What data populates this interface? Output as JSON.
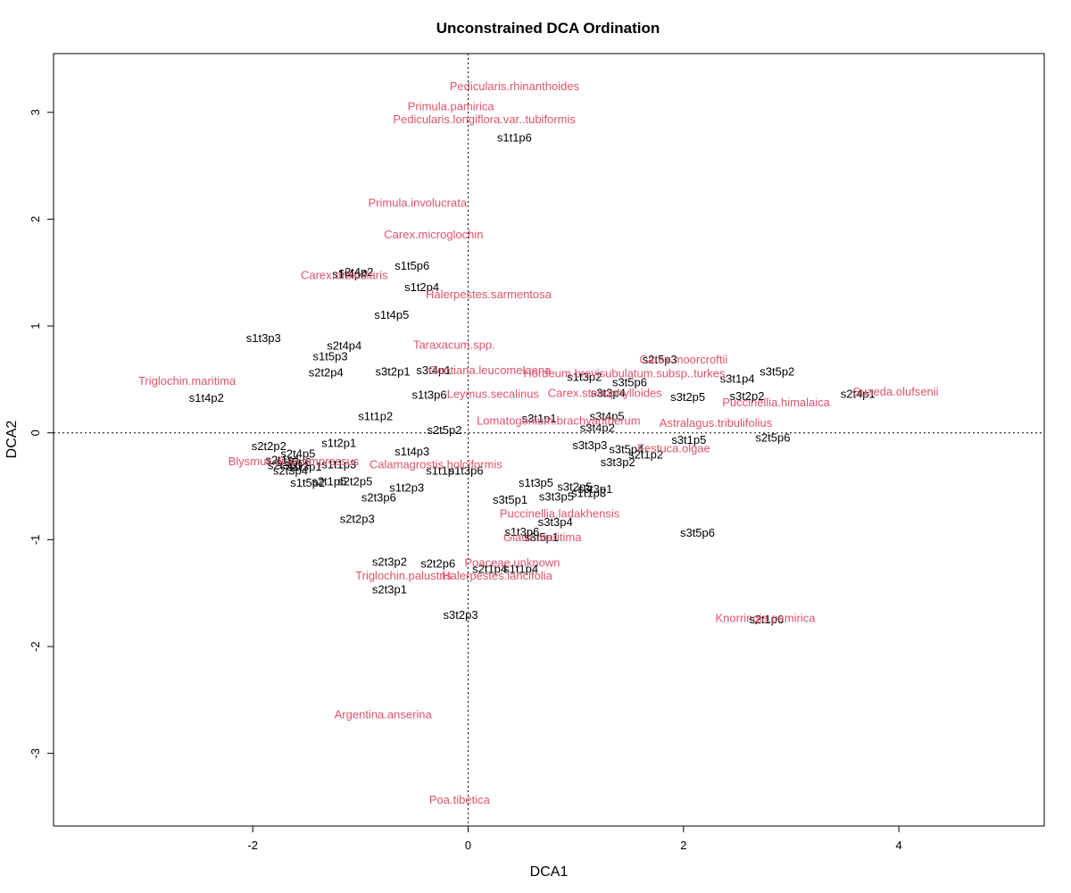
{
  "chart_data": {
    "type": "scatter",
    "title": "Unconstrained DCA Ordination",
    "xlabel": "DCA1",
    "ylabel": "DCA2",
    "xlim": [
      -3.85,
      5.35
    ],
    "ylim": [
      -3.68,
      3.55
    ],
    "xticks": [
      -2,
      0,
      2,
      4
    ],
    "yticks": [
      -3,
      -2,
      -1,
      0,
      1,
      2,
      3
    ],
    "reference_lines": {
      "x": 0,
      "y": 0,
      "style": "dotted"
    },
    "colors": {
      "sites": "#000000",
      "species": "#DF536B"
    },
    "sites": [
      {
        "label": "s1t1p6",
        "x": 0.43,
        "y": 2.77
      },
      {
        "label": "s1t5p6",
        "x": -0.52,
        "y": 1.57
      },
      {
        "label": "s2t4p2",
        "x": -1.04,
        "y": 1.51
      },
      {
        "label": "s1t4p4",
        "x": -1.1,
        "y": 1.49
      },
      {
        "label": "s1t2p4",
        "x": -0.43,
        "y": 1.37
      },
      {
        "label": "s1t4p5",
        "x": -0.71,
        "y": 1.11
      },
      {
        "label": "s1t3p3",
        "x": -1.9,
        "y": 0.89
      },
      {
        "label": "s2t4p4",
        "x": -1.15,
        "y": 0.82
      },
      {
        "label": "s1t5p3",
        "x": -1.28,
        "y": 0.72
      },
      {
        "label": "s2t2p4",
        "x": -1.32,
        "y": 0.57
      },
      {
        "label": "s3t2p1",
        "x": -0.7,
        "y": 0.58
      },
      {
        "label": "s3t4p1",
        "x": -0.32,
        "y": 0.59
      },
      {
        "label": "s1t4p2",
        "x": -2.43,
        "y": 0.33
      },
      {
        "label": "s1t3p6",
        "x": -0.36,
        "y": 0.36
      },
      {
        "label": "s1t1p2",
        "x": -0.86,
        "y": 0.16
      },
      {
        "label": "s2t5p2",
        "x": -0.22,
        "y": 0.03
      },
      {
        "label": "s3t1p1",
        "x": 0.66,
        "y": 0.14
      },
      {
        "label": "s3t4p2",
        "x": 1.2,
        "y": 0.05
      },
      {
        "label": "s3t4p5",
        "x": 1.29,
        "y": 0.16
      },
      {
        "label": "s1t3p2",
        "x": 1.08,
        "y": 0.53
      },
      {
        "label": "s2t5p3",
        "x": 1.78,
        "y": 0.69
      },
      {
        "label": "s3t5p6",
        "x": 1.5,
        "y": 0.48
      },
      {
        "label": "s3t1p4",
        "x": 2.5,
        "y": 0.51
      },
      {
        "label": "s3t5p2",
        "x": 2.87,
        "y": 0.58
      },
      {
        "label": "s3t2p2",
        "x": 2.59,
        "y": 0.35
      },
      {
        "label": "s2t4p1",
        "x": 3.62,
        "y": 0.37
      },
      {
        "label": "s3t3p4",
        "x": 1.3,
        "y": 0.38
      },
      {
        "label": "s3t2p5",
        "x": 2.04,
        "y": 0.34
      },
      {
        "label": "s3t1p5",
        "x": 2.05,
        "y": -0.06
      },
      {
        "label": "s2t5p6",
        "x": 2.83,
        "y": -0.04
      },
      {
        "label": "s3t3p3",
        "x": 1.13,
        "y": -0.11
      },
      {
        "label": "s3t5p4",
        "x": 1.47,
        "y": -0.15
      },
      {
        "label": "s3t3p2",
        "x": 1.39,
        "y": -0.27
      },
      {
        "label": "s2t1p2",
        "x": 1.65,
        "y": -0.2
      },
      {
        "label": "s2t2p2",
        "x": -1.85,
        "y": -0.12
      },
      {
        "label": "s1t2p1",
        "x": -1.2,
        "y": -0.09
      },
      {
        "label": "s1t4p3",
        "x": -0.52,
        "y": -0.17
      },
      {
        "label": "s2t4p5",
        "x": -1.58,
        "y": -0.19
      },
      {
        "label": "s1t1p3",
        "x": -1.2,
        "y": -0.29
      },
      {
        "label": "s1t1p1",
        "x": -0.23,
        "y": -0.35
      },
      {
        "label": "s1t3p6",
        "x": -0.02,
        "y": -0.35
      },
      {
        "label": "s2t1p5",
        "x": -1.29,
        "y": -0.45
      },
      {
        "label": "s2t2p5",
        "x": -1.05,
        "y": -0.45
      },
      {
        "label": "s1t5p2",
        "x": -1.49,
        "y": -0.46
      },
      {
        "label": "s1t2p3",
        "x": -0.57,
        "y": -0.51
      },
      {
        "label": "s2t3p6",
        "x": -0.83,
        "y": -0.6
      },
      {
        "label": "s1t3p5",
        "x": 0.63,
        "y": -0.46
      },
      {
        "label": "s3t2p5",
        "x": 0.99,
        "y": -0.5
      },
      {
        "label": "s3t3p1",
        "x": 1.18,
        "y": -0.52
      },
      {
        "label": "s1t1p3",
        "x": 1.12,
        "y": -0.56
      },
      {
        "label": "s3t3p5",
        "x": 0.82,
        "y": -0.59
      },
      {
        "label": "s3t5p1",
        "x": 0.39,
        "y": -0.62
      },
      {
        "label": "s2t2p3",
        "x": -1.03,
        "y": -0.8
      },
      {
        "label": "s3t3p4",
        "x": 0.81,
        "y": -0.83
      },
      {
        "label": "s1t3p6",
        "x": 0.5,
        "y": -0.92
      },
      {
        "label": "s3t5p1",
        "x": 0.68,
        "y": -0.97
      },
      {
        "label": "s3t5p6",
        "x": 2.13,
        "y": -0.93
      },
      {
        "label": "s2t3p2",
        "x": -0.73,
        "y": -1.2
      },
      {
        "label": "s2t2p6",
        "x": -0.28,
        "y": -1.22
      },
      {
        "label": "s2t1p4",
        "x": 0.2,
        "y": -1.27
      },
      {
        "label": "s1t1p4",
        "x": 0.49,
        "y": -1.27
      },
      {
        "label": "s2t3p1",
        "x": -0.73,
        "y": -1.46
      },
      {
        "label": "s3t2p3",
        "x": -0.07,
        "y": -1.7
      },
      {
        "label": "s2t1p6",
        "x": 2.77,
        "y": -1.74
      },
      {
        "label": "s2t1p1",
        "x": -1.72,
        "y": -0.25
      },
      {
        "label": "s1t5p6",
        "x": -1.62,
        "y": -0.27
      },
      {
        "label": "s2t3p3",
        "x": -1.7,
        "y": -0.3
      },
      {
        "label": "s1t3p1",
        "x": -1.52,
        "y": -0.31
      },
      {
        "label": "s2t3p4",
        "x": -1.65,
        "y": -0.35
      }
    ],
    "species": [
      {
        "label": "Pedicularis.rhinanthoides",
        "x": 0.43,
        "y": 3.25
      },
      {
        "label": "Primula.pamirica",
        "x": -0.16,
        "y": 3.06
      },
      {
        "label": "Pedicularis.longiflora.var..tubiformis",
        "x": 0.15,
        "y": 2.94
      },
      {
        "label": "Primula.involucrata",
        "x": -0.47,
        "y": 2.16
      },
      {
        "label": "Carex.microglochin",
        "x": -0.32,
        "y": 1.86
      },
      {
        "label": "Carex.orbicularis",
        "x": -1.15,
        "y": 1.48
      },
      {
        "label": "Halerpestes.sarmentosa",
        "x": 0.19,
        "y": 1.3
      },
      {
        "label": "Taraxacum.spp.",
        "x": -0.13,
        "y": 0.83
      },
      {
        "label": "Gentiana.leucomelaena",
        "x": 0.2,
        "y": 0.59
      },
      {
        "label": "Triglochin.maritima",
        "x": -2.61,
        "y": 0.49
      },
      {
        "label": "Leymus.secalinus",
        "x": 0.23,
        "y": 0.37
      },
      {
        "label": "Hordeum.brevisubulatum.subsp..turkes",
        "x": 1.45,
        "y": 0.56
      },
      {
        "label": "Carex.moorcroftii",
        "x": 2.0,
        "y": 0.69
      },
      {
        "label": "Carex.stenophylloides",
        "x": 1.27,
        "y": 0.38
      },
      {
        "label": "Suaeda.olufsenii",
        "x": 3.97,
        "y": 0.39
      },
      {
        "label": "Puccinellia.himalaica",
        "x": 2.86,
        "y": 0.29
      },
      {
        "label": "Lomatogonium.brachyantherum",
        "x": 0.84,
        "y": 0.12
      },
      {
        "label": "Astralagus.tribulifolius",
        "x": 2.3,
        "y": 0.1
      },
      {
        "label": "Festuca.olgae",
        "x": 1.91,
        "y": -0.14
      },
      {
        "label": "Blysmus.sinocompressus",
        "x": -1.62,
        "y": -0.26
      },
      {
        "label": "Calamagrostis.holciformis",
        "x": -0.3,
        "y": -0.29
      },
      {
        "label": "Puccinellia.ladakhensis",
        "x": 0.85,
        "y": -0.75
      },
      {
        "label": "Glaux.maritima",
        "x": 0.69,
        "y": -0.97
      },
      {
        "label": "Poaceae.unknown",
        "x": 0.41,
        "y": -1.21
      },
      {
        "label": "Halerpestes.lancifolia",
        "x": 0.27,
        "y": -1.33
      },
      {
        "label": "Triglochin.palustris",
        "x": -0.6,
        "y": -1.33
      },
      {
        "label": "Knorringia.pamirica",
        "x": 2.76,
        "y": -1.73
      },
      {
        "label": "Argentina.anserina",
        "x": -0.79,
        "y": -2.63
      },
      {
        "label": "Poa.tibetica",
        "x": -0.08,
        "y": -3.43
      }
    ]
  }
}
